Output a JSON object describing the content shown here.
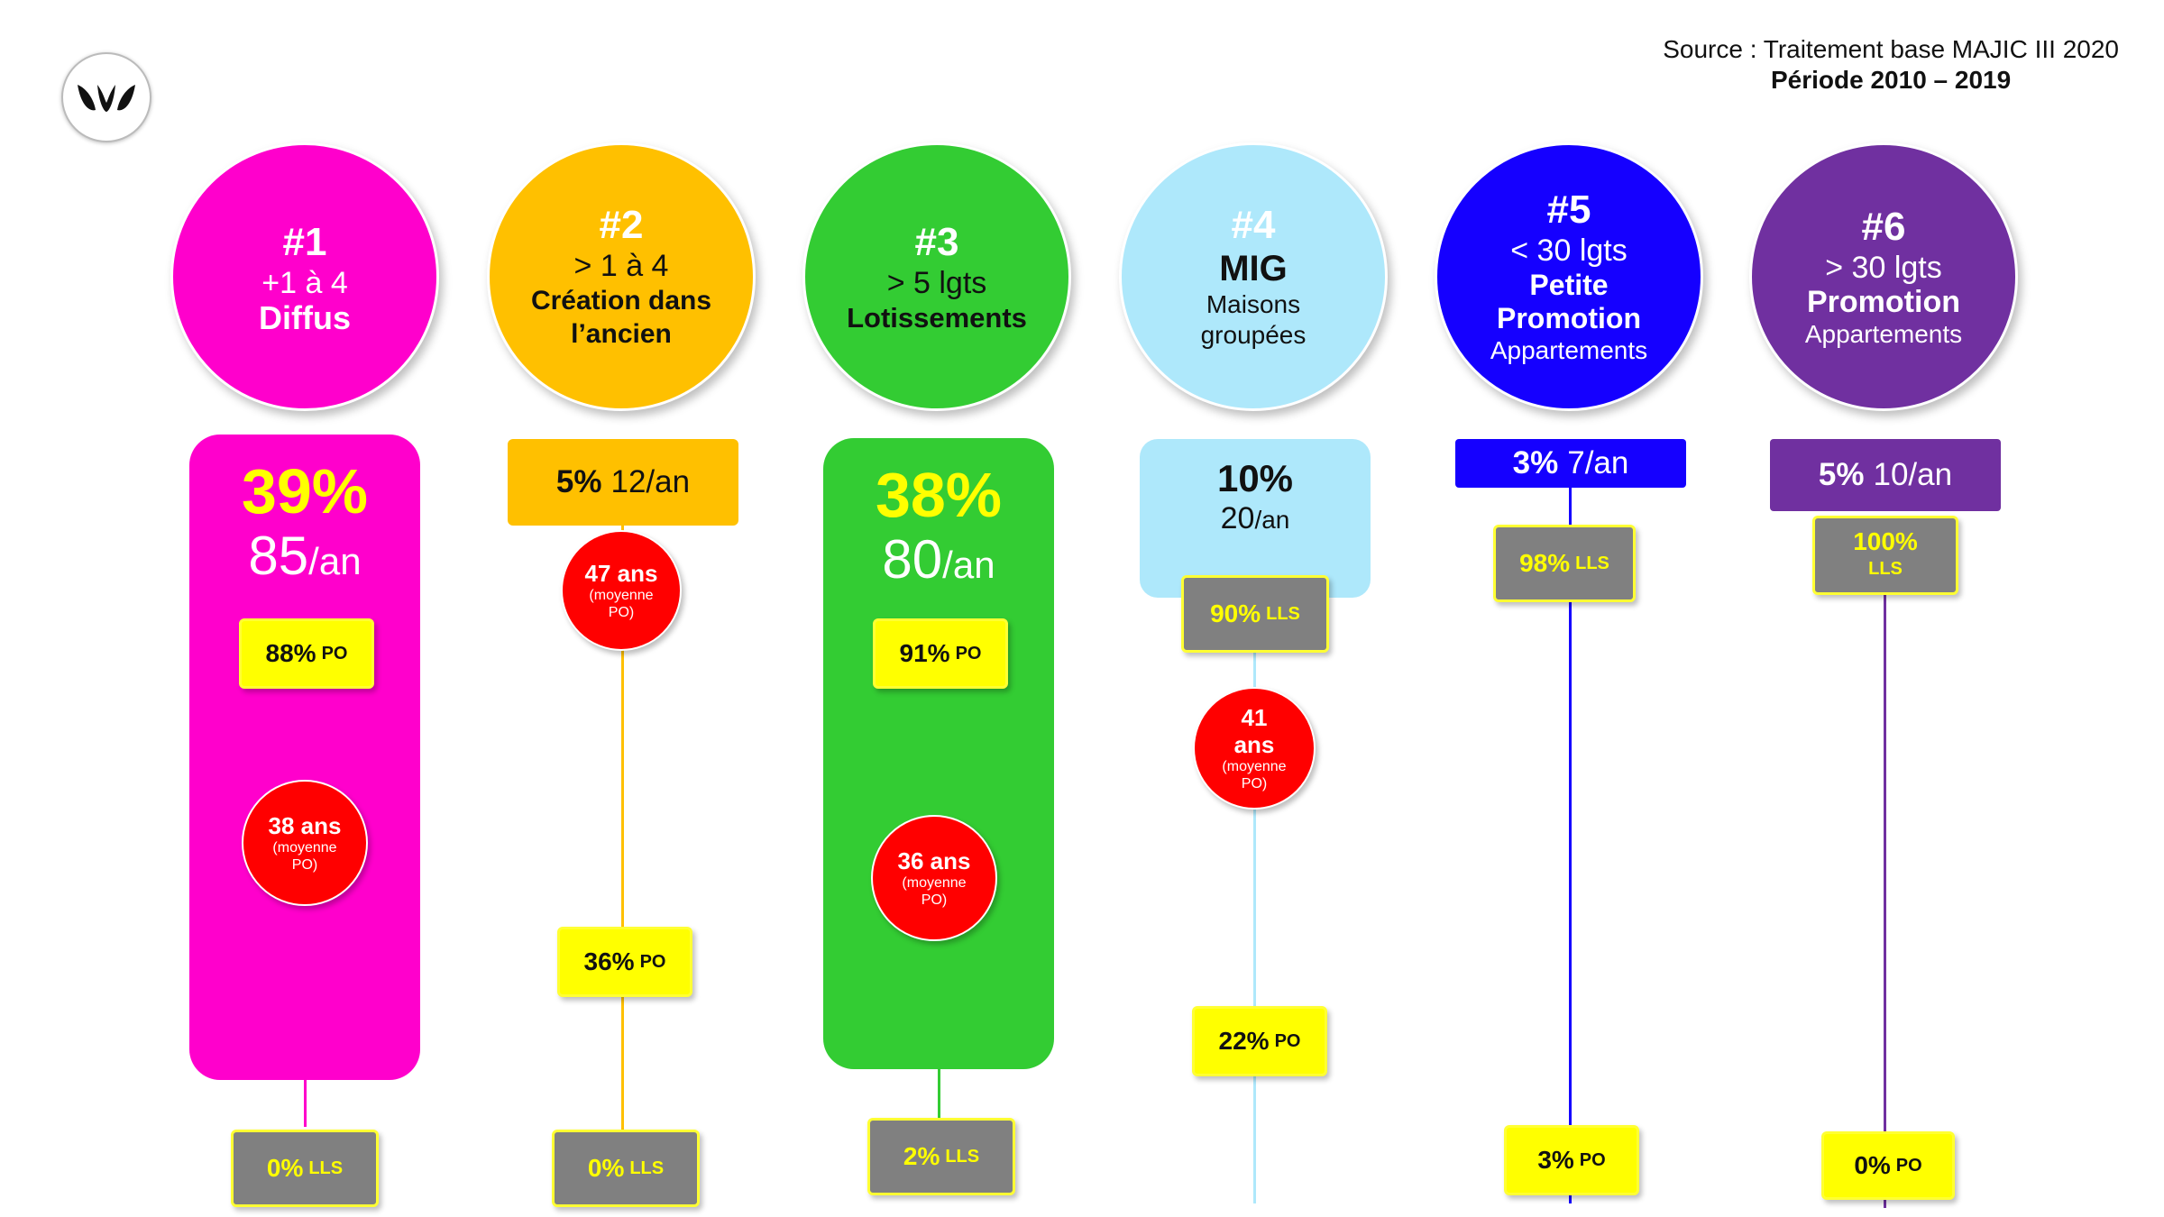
{
  "source": {
    "line1": "Source : Traitement base MAJIC III 2020",
    "line2": "Période 2010 – 2019"
  },
  "colors": {
    "c1": "#ff00cc",
    "c2": "#ffc000",
    "c3": "#33cc33",
    "c4": "#aee8fb",
    "c5": "#1500ff",
    "c6": "#7030a0",
    "badge_yellow": "#ffff00",
    "badge_gray": "#808080",
    "age_red": "#ff0000"
  },
  "logo": {
    "icon": "leaf-logo-icon"
  },
  "c1": {
    "num": "#1",
    "l1": "+1 à 4",
    "l2": "Diffus",
    "pct": "39%",
    "rate": "85",
    "unit": "/an",
    "po_v": "88%",
    "po_u": "PO",
    "age_a": "38 ans",
    "age_m": "(moyenne PO)",
    "lls_v": "0%",
    "lls_u": "LLS"
  },
  "c2": {
    "num": "#2",
    "l1": "> 1 à 4",
    "l2": "Création dans",
    "l3": "l’ancien",
    "bar_pct": "5%",
    "bar_rate": "12/an",
    "age_a": "47 ans",
    "age_m": "(moyenne PO)",
    "po_v": "36%",
    "po_u": "PO",
    "lls_v": "0%",
    "lls_u": "LLS"
  },
  "c3": {
    "num": "#3",
    "l1": "> 5 lgts",
    "l2": "Lotissements",
    "pct": "38%",
    "rate": "80",
    "unit": "/an",
    "po_v": "91%",
    "po_u": "PO",
    "age_a": "36 ans",
    "age_m": "(moyenne PO)",
    "lls_v": "2%",
    "lls_u": "LLS"
  },
  "c4": {
    "num": "#4",
    "l1": "MIG",
    "l2": "Maisons",
    "l3": "groupées",
    "pct": "10%",
    "rate": "20",
    "unit": "/an",
    "lls_v": "90%",
    "lls_u": "LLS",
    "age_a1": "41",
    "age_a2": "ans",
    "age_m": "(moyenne PO)",
    "po_v": "22%",
    "po_u": "PO"
  },
  "c5": {
    "num": "#5",
    "l1": "< 30 lgts",
    "l2": "Petite",
    "l3": "Promotion",
    "l4": "Appartements",
    "bar_pct": "3%",
    "bar_rate": "7/an",
    "lls_v": "98%",
    "lls_u": "LLS",
    "po_v": "3%",
    "po_u": "PO"
  },
  "c6": {
    "num": "#6",
    "l1": "> 30 lgts",
    "l2": "Promotion",
    "l3": "Appartements",
    "bar_pct": "5%",
    "bar_rate": "10/an",
    "lls_v": "100%",
    "lls_u": "LLS",
    "po_v": "0%",
    "po_u": "PO"
  }
}
